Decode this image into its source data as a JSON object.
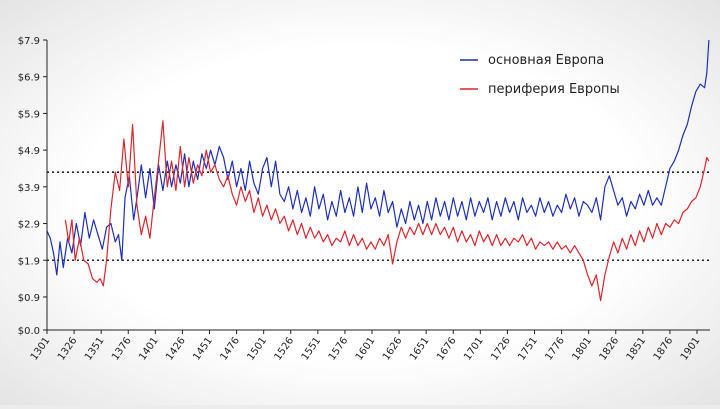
{
  "chart_data": {
    "type": "line",
    "title": "",
    "xlabel": "",
    "ylabel": "",
    "xlim": [
      1301,
      1913
    ],
    "ylim": [
      0.0,
      7.9
    ],
    "grid": false,
    "legend_position": "top-right",
    "y_ticks": [
      "$0.0",
      "$0.9",
      "$1.9",
      "$2.9",
      "$3.9",
      "$4.9",
      "$5.9",
      "$6.9",
      "$7.9"
    ],
    "x_ticks": [
      "1301",
      "1326",
      "1351",
      "1376",
      "1401",
      "1426",
      "1451",
      "1476",
      "1501",
      "1526",
      "1551",
      "1576",
      "1601",
      "1626",
      "1651",
      "1676",
      "1701",
      "1726",
      "1751",
      "1776",
      "1801",
      "1826",
      "1851",
      "1876",
      "1901"
    ],
    "reference_lines": [
      4.3,
      1.9
    ],
    "series": [
      {
        "name": "основная Европа",
        "color": "#1f2fb5",
        "points": [
          [
            1301,
            2.7
          ],
          [
            1304,
            2.5
          ],
          [
            1307,
            2.1
          ],
          [
            1310,
            1.5
          ],
          [
            1313,
            2.4
          ],
          [
            1316,
            1.7
          ],
          [
            1320,
            2.5
          ],
          [
            1324,
            2.1
          ],
          [
            1328,
            2.9
          ],
          [
            1332,
            2.3
          ],
          [
            1336,
            3.2
          ],
          [
            1340,
            2.5
          ],
          [
            1344,
            3.0
          ],
          [
            1348,
            2.6
          ],
          [
            1352,
            2.2
          ],
          [
            1356,
            2.8
          ],
          [
            1360,
            2.9
          ],
          [
            1364,
            2.4
          ],
          [
            1367,
            2.6
          ],
          [
            1370,
            1.9
          ],
          [
            1373,
            3.6
          ],
          [
            1377,
            4.2
          ],
          [
            1381,
            3.0
          ],
          [
            1385,
            3.8
          ],
          [
            1388,
            4.5
          ],
          [
            1392,
            3.6
          ],
          [
            1396,
            4.4
          ],
          [
            1400,
            3.3
          ],
          [
            1404,
            4.5
          ],
          [
            1408,
            3.8
          ],
          [
            1412,
            4.6
          ],
          [
            1416,
            3.9
          ],
          [
            1420,
            4.5
          ],
          [
            1424,
            4.0
          ],
          [
            1428,
            4.8
          ],
          [
            1432,
            3.9
          ],
          [
            1436,
            4.6
          ],
          [
            1440,
            4.1
          ],
          [
            1444,
            4.8
          ],
          [
            1448,
            4.4
          ],
          [
            1452,
            4.9
          ],
          [
            1456,
            4.5
          ],
          [
            1460,
            5.0
          ],
          [
            1464,
            4.7
          ],
          [
            1468,
            4.1
          ],
          [
            1472,
            4.6
          ],
          [
            1476,
            3.9
          ],
          [
            1480,
            4.4
          ],
          [
            1484,
            3.8
          ],
          [
            1488,
            4.6
          ],
          [
            1492,
            4.0
          ],
          [
            1496,
            3.7
          ],
          [
            1500,
            4.4
          ],
          [
            1504,
            4.7
          ],
          [
            1508,
            3.9
          ],
          [
            1512,
            4.6
          ],
          [
            1516,
            3.7
          ],
          [
            1520,
            3.5
          ],
          [
            1524,
            3.9
          ],
          [
            1528,
            3.3
          ],
          [
            1532,
            3.8
          ],
          [
            1536,
            3.2
          ],
          [
            1540,
            3.6
          ],
          [
            1544,
            3.1
          ],
          [
            1548,
            3.9
          ],
          [
            1552,
            3.3
          ],
          [
            1556,
            3.7
          ],
          [
            1560,
            3.0
          ],
          [
            1564,
            3.5
          ],
          [
            1568,
            3.1
          ],
          [
            1572,
            3.8
          ],
          [
            1576,
            3.2
          ],
          [
            1580,
            3.6
          ],
          [
            1584,
            3.1
          ],
          [
            1588,
            3.9
          ],
          [
            1592,
            3.2
          ],
          [
            1596,
            4.0
          ],
          [
            1600,
            3.3
          ],
          [
            1604,
            3.6
          ],
          [
            1608,
            3.1
          ],
          [
            1612,
            3.8
          ],
          [
            1616,
            3.2
          ],
          [
            1620,
            3.5
          ],
          [
            1624,
            2.8
          ],
          [
            1628,
            3.3
          ],
          [
            1632,
            2.9
          ],
          [
            1636,
            3.5
          ],
          [
            1640,
            3.0
          ],
          [
            1644,
            3.4
          ],
          [
            1648,
            2.9
          ],
          [
            1652,
            3.5
          ],
          [
            1656,
            3.0
          ],
          [
            1660,
            3.6
          ],
          [
            1664,
            3.1
          ],
          [
            1668,
            3.5
          ],
          [
            1672,
            3.0
          ],
          [
            1676,
            3.6
          ],
          [
            1680,
            3.1
          ],
          [
            1684,
            3.5
          ],
          [
            1688,
            3.0
          ],
          [
            1692,
            3.6
          ],
          [
            1696,
            3.1
          ],
          [
            1700,
            3.5
          ],
          [
            1704,
            3.2
          ],
          [
            1708,
            3.6
          ],
          [
            1712,
            3.0
          ],
          [
            1716,
            3.5
          ],
          [
            1720,
            3.1
          ],
          [
            1724,
            3.6
          ],
          [
            1728,
            3.2
          ],
          [
            1732,
            3.5
          ],
          [
            1736,
            3.0
          ],
          [
            1740,
            3.6
          ],
          [
            1744,
            3.2
          ],
          [
            1748,
            3.4
          ],
          [
            1752,
            3.1
          ],
          [
            1756,
            3.6
          ],
          [
            1760,
            3.2
          ],
          [
            1764,
            3.5
          ],
          [
            1768,
            3.1
          ],
          [
            1772,
            3.4
          ],
          [
            1776,
            3.2
          ],
          [
            1780,
            3.7
          ],
          [
            1784,
            3.3
          ],
          [
            1788,
            3.6
          ],
          [
            1792,
            3.1
          ],
          [
            1796,
            3.5
          ],
          [
            1800,
            3.4
          ],
          [
            1804,
            3.2
          ],
          [
            1808,
            3.6
          ],
          [
            1812,
            3.0
          ],
          [
            1816,
            3.9
          ],
          [
            1820,
            4.2
          ],
          [
            1824,
            3.8
          ],
          [
            1828,
            3.4
          ],
          [
            1832,
            3.6
          ],
          [
            1836,
            3.1
          ],
          [
            1840,
            3.5
          ],
          [
            1844,
            3.3
          ],
          [
            1848,
            3.7
          ],
          [
            1852,
            3.4
          ],
          [
            1856,
            3.8
          ],
          [
            1860,
            3.4
          ],
          [
            1864,
            3.6
          ],
          [
            1868,
            3.4
          ],
          [
            1872,
            3.9
          ],
          [
            1876,
            4.4
          ],
          [
            1880,
            4.6
          ],
          [
            1884,
            4.9
          ],
          [
            1888,
            5.3
          ],
          [
            1892,
            5.6
          ],
          [
            1896,
            6.1
          ],
          [
            1900,
            6.5
          ],
          [
            1904,
            6.7
          ],
          [
            1908,
            6.6
          ],
          [
            1910,
            7.0
          ],
          [
            1912,
            7.9
          ]
        ]
      },
      {
        "name": "периферия Европы",
        "color": "#d8262e",
        "points": [
          [
            1318,
            3.0
          ],
          [
            1321,
            2.4
          ],
          [
            1324,
            3.0
          ],
          [
            1327,
            1.9
          ],
          [
            1331,
            2.5
          ],
          [
            1335,
            1.9
          ],
          [
            1339,
            1.8
          ],
          [
            1343,
            1.4
          ],
          [
            1347,
            1.3
          ],
          [
            1350,
            1.4
          ],
          [
            1353,
            1.2
          ],
          [
            1356,
            1.9
          ],
          [
            1360,
            3.3
          ],
          [
            1364,
            4.3
          ],
          [
            1368,
            3.8
          ],
          [
            1372,
            5.2
          ],
          [
            1376,
            3.9
          ],
          [
            1380,
            5.6
          ],
          [
            1384,
            3.4
          ],
          [
            1388,
            2.6
          ],
          [
            1392,
            3.1
          ],
          [
            1396,
            2.5
          ],
          [
            1400,
            3.6
          ],
          [
            1404,
            4.6
          ],
          [
            1408,
            5.7
          ],
          [
            1412,
            3.9
          ],
          [
            1416,
            4.6
          ],
          [
            1420,
            3.8
          ],
          [
            1424,
            5.0
          ],
          [
            1428,
            3.9
          ],
          [
            1432,
            4.7
          ],
          [
            1436,
            4.0
          ],
          [
            1440,
            4.5
          ],
          [
            1444,
            4.2
          ],
          [
            1448,
            4.9
          ],
          [
            1452,
            4.3
          ],
          [
            1456,
            4.5
          ],
          [
            1460,
            4.1
          ],
          [
            1464,
            3.9
          ],
          [
            1468,
            4.2
          ],
          [
            1472,
            3.7
          ],
          [
            1476,
            3.4
          ],
          [
            1480,
            3.9
          ],
          [
            1484,
            3.5
          ],
          [
            1488,
            3.8
          ],
          [
            1492,
            3.2
          ],
          [
            1496,
            3.6
          ],
          [
            1500,
            3.1
          ],
          [
            1504,
            3.4
          ],
          [
            1508,
            3.0
          ],
          [
            1512,
            3.3
          ],
          [
            1516,
            2.9
          ],
          [
            1520,
            3.1
          ],
          [
            1524,
            2.7
          ],
          [
            1528,
            3.0
          ],
          [
            1532,
            2.6
          ],
          [
            1536,
            2.9
          ],
          [
            1540,
            2.5
          ],
          [
            1544,
            2.8
          ],
          [
            1548,
            2.5
          ],
          [
            1552,
            2.7
          ],
          [
            1556,
            2.4
          ],
          [
            1560,
            2.6
          ],
          [
            1564,
            2.3
          ],
          [
            1568,
            2.5
          ],
          [
            1572,
            2.4
          ],
          [
            1576,
            2.7
          ],
          [
            1580,
            2.3
          ],
          [
            1584,
            2.6
          ],
          [
            1588,
            2.3
          ],
          [
            1592,
            2.5
          ],
          [
            1596,
            2.2
          ],
          [
            1600,
            2.4
          ],
          [
            1604,
            2.2
          ],
          [
            1608,
            2.5
          ],
          [
            1612,
            2.3
          ],
          [
            1616,
            2.6
          ],
          [
            1620,
            1.8
          ],
          [
            1624,
            2.4
          ],
          [
            1628,
            2.8
          ],
          [
            1632,
            2.5
          ],
          [
            1636,
            2.8
          ],
          [
            1640,
            2.6
          ],
          [
            1644,
            2.9
          ],
          [
            1648,
            2.6
          ],
          [
            1652,
            2.9
          ],
          [
            1656,
            2.6
          ],
          [
            1660,
            2.9
          ],
          [
            1664,
            2.6
          ],
          [
            1668,
            2.8
          ],
          [
            1672,
            2.5
          ],
          [
            1676,
            2.8
          ],
          [
            1680,
            2.4
          ],
          [
            1684,
            2.7
          ],
          [
            1688,
            2.4
          ],
          [
            1692,
            2.6
          ],
          [
            1696,
            2.3
          ],
          [
            1700,
            2.7
          ],
          [
            1704,
            2.4
          ],
          [
            1708,
            2.6
          ],
          [
            1712,
            2.3
          ],
          [
            1716,
            2.6
          ],
          [
            1720,
            2.3
          ],
          [
            1724,
            2.5
          ],
          [
            1728,
            2.3
          ],
          [
            1732,
            2.5
          ],
          [
            1736,
            2.4
          ],
          [
            1740,
            2.6
          ],
          [
            1744,
            2.3
          ],
          [
            1748,
            2.5
          ],
          [
            1752,
            2.2
          ],
          [
            1756,
            2.4
          ],
          [
            1760,
            2.3
          ],
          [
            1764,
            2.4
          ],
          [
            1768,
            2.2
          ],
          [
            1772,
            2.4
          ],
          [
            1776,
            2.2
          ],
          [
            1780,
            2.3
          ],
          [
            1784,
            2.1
          ],
          [
            1788,
            2.3
          ],
          [
            1792,
            2.1
          ],
          [
            1796,
            1.9
          ],
          [
            1800,
            1.5
          ],
          [
            1804,
            1.2
          ],
          [
            1808,
            1.5
          ],
          [
            1812,
            0.8
          ],
          [
            1816,
            1.5
          ],
          [
            1820,
            2.0
          ],
          [
            1824,
            2.4
          ],
          [
            1828,
            2.1
          ],
          [
            1832,
            2.5
          ],
          [
            1836,
            2.2
          ],
          [
            1840,
            2.6
          ],
          [
            1844,
            2.3
          ],
          [
            1848,
            2.7
          ],
          [
            1852,
            2.4
          ],
          [
            1856,
            2.8
          ],
          [
            1860,
            2.5
          ],
          [
            1864,
            2.9
          ],
          [
            1868,
            2.6
          ],
          [
            1872,
            2.9
          ],
          [
            1876,
            2.8
          ],
          [
            1880,
            3.0
          ],
          [
            1884,
            2.9
          ],
          [
            1888,
            3.2
          ],
          [
            1892,
            3.3
          ],
          [
            1896,
            3.5
          ],
          [
            1900,
            3.6
          ],
          [
            1904,
            3.9
          ],
          [
            1908,
            4.4
          ],
          [
            1910,
            4.7
          ],
          [
            1912,
            4.6
          ]
        ]
      }
    ]
  }
}
